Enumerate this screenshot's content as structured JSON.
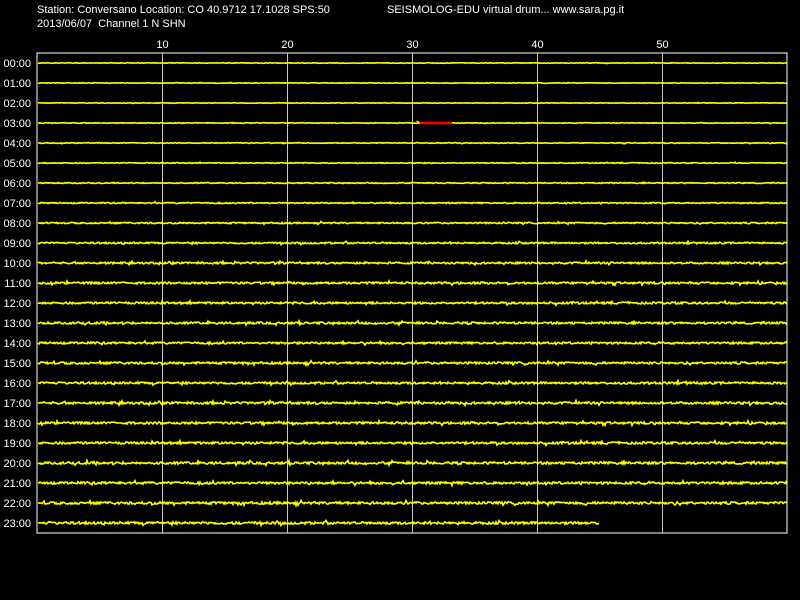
{
  "header": {
    "station_line": "Station: Conversano Location: CO 40.9712 17.1028 SPS:50",
    "date_channel_line": "2013/06/07  Channel 1 N SHN",
    "app_line": "SEISMOLOG-EDU virtual drum... www.sara.pg.it"
  },
  "colors": {
    "background": "#000000",
    "trace": "#ffff00",
    "event": "#ff0000",
    "grid": "#ffffff",
    "text": "#ffffff"
  },
  "chart_data": {
    "type": "line",
    "title": "",
    "xlabel": "",
    "ylabel": "",
    "x_unit_hint": "minutes",
    "xlim": [
      0,
      60
    ],
    "x_ticks": [
      10,
      20,
      30,
      40,
      50
    ],
    "grid": true,
    "rows": [
      "00:00",
      "01:00",
      "02:00",
      "03:00",
      "04:00",
      "05:00",
      "06:00",
      "07:00",
      "08:00",
      "09:00",
      "10:00",
      "11:00",
      "12:00",
      "13:00",
      "14:00",
      "15:00",
      "16:00",
      "17:00",
      "18:00",
      "19:00",
      "20:00",
      "21:00",
      "22:00",
      "23:00"
    ],
    "noise_level": [
      0.3,
      0.3,
      0.3,
      0.35,
      0.4,
      0.45,
      0.5,
      0.6,
      0.7,
      0.8,
      0.9,
      1.0,
      1.0,
      1.0,
      1.0,
      1.05,
      1.05,
      1.1,
      1.1,
      1.1,
      1.15,
      1.15,
      1.2,
      1.2
    ],
    "last_row_end_minute": 45,
    "events": [
      {
        "row": "03:00",
        "start_minute": 30.6,
        "end_minute": 33.2,
        "color": "#ff0000"
      }
    ]
  }
}
